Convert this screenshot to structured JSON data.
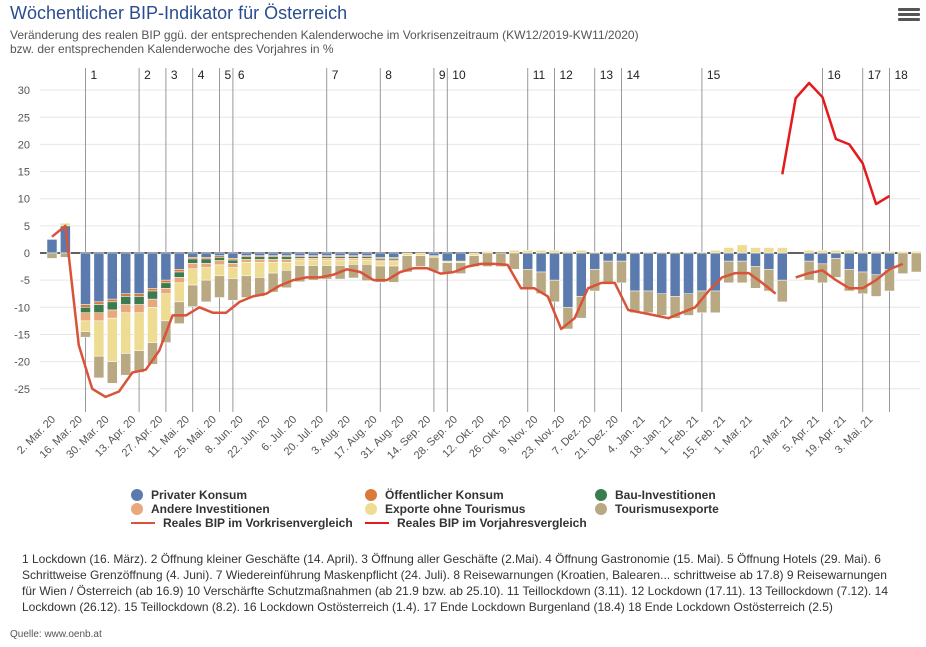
{
  "title": "Wöchentlicher BIP-Indikator für Österreich",
  "subtitle_line1": "Veränderung des realen BIP ggü. der entsprechenden Kalenderwoche im Vorkrisenzeitraum (KW12/2019-KW11/2020)",
  "subtitle_line2": "bzw. der entsprechenden Kalenderwoche des Vorjahres in %",
  "menu_icon": "hamburger-menu-icon",
  "legend": [
    {
      "label": "Privater Konsum",
      "color": "#5b7bae",
      "kind": "dot"
    },
    {
      "label": "Öffentlicher Konsum",
      "color": "#d97a3a",
      "kind": "dot"
    },
    {
      "label": "Bau-Investitionen",
      "color": "#3a7b4f",
      "kind": "dot"
    },
    {
      "label": "Andere Investitionen",
      "color": "#e8a87c",
      "kind": "dot"
    },
    {
      "label": "Exporte ohne Tourismus",
      "color": "#eedc92",
      "kind": "dot"
    },
    {
      "label": "Tourismusexporte",
      "color": "#b9a982",
      "kind": "dot"
    },
    {
      "label": "Reales BIP im Vorkrisenvergleich",
      "color": "#d9533a",
      "kind": "line"
    },
    {
      "label": "Reales BIP im Vorjahresvergleich",
      "color": "#e41a1c",
      "kind": "line"
    }
  ],
  "footnotes": "1 Lockdown (16. März).   2 Öffnung kleiner Geschäfte (14. April).   3 Öffnung aller Geschäfte (2.Mai).   4 Öffnung Gastronomie (15. Mai).   5 Öffnung Hotels (29. Mai).   6 Schrittweise Grenzöffnung (4. Juni).   7 Wiedereinführung Maskenpflicht (24. Juli).   8 Reisewarnungen (Kroatien, Balearen... schrittweise ab 17.8)   9 Reisewarnungen für Wien / Österreich (ab 16.9)   10 Verschärfte Schutzmaßnahmen (ab 21.9 bzw. ab 25.10).   11 Teillockdown (3.11).   12 Lockdown (17.11).   13 Teillockdown (7.12).   14 Lockdown (26.12).   15 Teillockdown (8.2).   16 Lockdown Ostösterreich (1.4).   17 Ende Lockdown Burgenland (18.4)   18 Ende Lockdown Ostösterreich (2.5)",
  "source": "Quelle: www.oenb.at",
  "chart_data": {
    "type": "bar",
    "stacked": true,
    "ylim": [
      -27,
      31
    ],
    "yticks": [
      30,
      25,
      20,
      15,
      10,
      5,
      0,
      -5,
      -10,
      -15,
      -20,
      -25
    ],
    "grid": true,
    "legend_position": "bottom",
    "x_tick_labels": [
      "2. Mar. 20",
      "16. Mar. 20",
      "30. Mar. 20",
      "13. Apr. 20",
      "27. Apr. 20",
      "11. Mai. 20",
      "25. Mai. 20",
      "8. Jun. 20",
      "22. Jun. 20",
      "6. Jul. 20",
      "20. Jul. 20",
      "3. Aug. 20",
      "17. Aug. 20",
      "31. Aug. 20",
      "14. Sep. 20",
      "28. Sep. 20",
      "12. Okt. 20",
      "26. Okt. 20",
      "9. Nov. 20",
      "23. Nov. 20",
      "7. Dez. 20",
      "21. Dez. 20",
      "4. Jan. 21",
      "18. Jan. 21",
      "1. Feb. 21",
      "15. Feb. 21",
      "1. Mar. 21",
      "22. Mar. 21",
      "5. Apr. 21",
      "19. Apr. 21",
      "3. Mai. 21"
    ],
    "x_tick_weeks": [
      0,
      2,
      4,
      6,
      8,
      10,
      12,
      14,
      16,
      18,
      20,
      22,
      24,
      26,
      28,
      30,
      32,
      34,
      36,
      38,
      40,
      42,
      44,
      46,
      48,
      50,
      52,
      55,
      57,
      59,
      61
    ],
    "event_lines": [
      {
        "label": "1",
        "week": 2.5
      },
      {
        "label": "2",
        "week": 6.5
      },
      {
        "label": "3",
        "week": 8.5
      },
      {
        "label": "4",
        "week": 10.5
      },
      {
        "label": "5",
        "week": 12.5
      },
      {
        "label": "6",
        "week": 13.5
      },
      {
        "label": "7",
        "week": 20.5
      },
      {
        "label": "8",
        "week": 24.5
      },
      {
        "label": "9",
        "week": 28.5
      },
      {
        "label": "10",
        "week": 29.5
      },
      {
        "label": "11",
        "week": 35.5
      },
      {
        "label": "12",
        "week": 37.5
      },
      {
        "label": "13",
        "week": 40.5
      },
      {
        "label": "14",
        "week": 42.5
      },
      {
        "label": "15",
        "week": 48.5
      },
      {
        "label": "16",
        "week": 57.5
      },
      {
        "label": "17",
        "week": 60.5
      },
      {
        "label": "18",
        "week": 62.5
      }
    ],
    "series_names": [
      "Privater Konsum",
      "Öffentlicher Konsum",
      "Bau-Investitionen",
      "Andere Investitionen",
      "Exporte ohne Tourismus",
      "Tourismusexporte"
    ],
    "series_colors": [
      "#5b7bae",
      "#d97a3a",
      "#3a7b4f",
      "#e8a87c",
      "#eedc92",
      "#b9a982"
    ],
    "weeks": [
      {
        "w": 0,
        "v": [
          2.5,
          0,
          0,
          0,
          0,
          -1.0
        ]
      },
      {
        "w": 1,
        "v": [
          5.0,
          0,
          0,
          0,
          0.5,
          -0.8
        ]
      },
      {
        "w": 2.5,
        "v": [
          -9.5,
          -0.5,
          -1.0,
          -1.5,
          -2.0,
          -1.0
        ]
      },
      {
        "w": 3.5,
        "v": [
          -9.0,
          -0.5,
          -1.5,
          -1.5,
          -6.5,
          -4.0
        ]
      },
      {
        "w": 4.5,
        "v": [
          -8.5,
          -0.5,
          -1.5,
          -1.5,
          -8.0,
          -4.0
        ]
      },
      {
        "w": 5.5,
        "v": [
          -7.5,
          -0.5,
          -1.5,
          -1.5,
          -7.5,
          -4.0
        ]
      },
      {
        "w": 6.5,
        "v": [
          -7.5,
          -0.5,
          -1.5,
          -1.5,
          -7.0,
          -4.0
        ]
      },
      {
        "w": 7.5,
        "v": [
          -6.5,
          -0.5,
          -1.5,
          -1.5,
          -6.5,
          -4.0
        ]
      },
      {
        "w": 8.5,
        "v": [
          -5.0,
          -0.5,
          -1.0,
          -1.0,
          -5.0,
          -4.0
        ]
      },
      {
        "w": 9.5,
        "v": [
          -3.0,
          -0.5,
          -1.0,
          -1.0,
          -3.5,
          -4.0
        ]
      },
      {
        "w": 10.5,
        "v": [
          -0.8,
          -0.3,
          -0.8,
          -1.0,
          -3.0,
          -4.0
        ]
      },
      {
        "w": 11.5,
        "v": [
          -0.8,
          -0.3,
          -0.8,
          -0.8,
          -2.3,
          -4.0
        ]
      },
      {
        "w": 12.5,
        "v": [
          -0.5,
          -0.3,
          -0.6,
          -0.8,
          -2.0,
          -4.0
        ]
      },
      {
        "w": 13.5,
        "v": [
          -1.0,
          -0.3,
          -0.6,
          -0.8,
          -2.0,
          -4.0
        ]
      },
      {
        "w": 14.5,
        "v": [
          -0.5,
          -0.2,
          -0.5,
          -0.5,
          -2.5,
          -4.0
        ]
      },
      {
        "w": 15.5,
        "v": [
          -0.5,
          -0.2,
          -0.5,
          -0.5,
          -2.8,
          -3.5
        ]
      },
      {
        "w": 16.5,
        "v": [
          -0.5,
          -0.2,
          -0.5,
          -0.5,
          -2.0,
          -3.5
        ]
      },
      {
        "w": 17.5,
        "v": [
          -0.5,
          -0.2,
          -0.5,
          -0.5,
          -1.5,
          -3.2
        ]
      },
      {
        "w": 18.5,
        "v": [
          -0.5,
          -0.2,
          -0.3,
          -0.3,
          -1.0,
          -3.0
        ]
      },
      {
        "w": 19.5,
        "v": [
          -0.5,
          -0.2,
          -0.3,
          -0.3,
          -1.0,
          -2.7
        ]
      },
      {
        "w": 20.5,
        "v": [
          -0.5,
          -0.2,
          -0.3,
          -0.3,
          -1.0,
          -2.5
        ]
      },
      {
        "w": 21.5,
        "v": [
          -0.5,
          -0.2,
          -0.3,
          -0.3,
          -1.0,
          -2.5
        ]
      },
      {
        "w": 22.5,
        "v": [
          -0.5,
          -0.2,
          -0.3,
          -0.3,
          -0.8,
          -2.5
        ]
      },
      {
        "w": 23.5,
        "v": [
          -0.5,
          -0.2,
          -0.3,
          -0.3,
          -0.8,
          -3.0
        ]
      },
      {
        "w": 24.5,
        "v": [
          -0.8,
          -0.2,
          -0.3,
          -0.3,
          -0.8,
          -3.0
        ]
      },
      {
        "w": 25.5,
        "v": [
          -0.8,
          -0.2,
          -0.3,
          -0.3,
          -0.8,
          -3.0
        ]
      },
      {
        "w": 26.5,
        "v": [
          0,
          0,
          0,
          0,
          -0.5,
          -3.0
        ]
      },
      {
        "w": 27.5,
        "v": [
          0,
          0,
          0,
          0,
          -0.5,
          -2.0
        ]
      },
      {
        "w": 28.5,
        "v": [
          -0.5,
          0,
          0,
          0,
          -0.3,
          -2.5
        ]
      },
      {
        "w": 29.5,
        "v": [
          -1.5,
          0,
          0,
          0,
          -0.3,
          -2.0
        ]
      },
      {
        "w": 30.5,
        "v": [
          -1.5,
          0,
          0,
          0,
          -0.3,
          -2.0
        ]
      },
      {
        "w": 31.5,
        "v": [
          0,
          0,
          0,
          0,
          -0.5,
          -2.0
        ]
      },
      {
        "w": 32.5,
        "v": [
          0,
          0,
          0,
          0,
          0.3,
          -2.5
        ]
      },
      {
        "w": 33.5,
        "v": [
          0,
          0,
          0,
          0,
          0,
          -2.5
        ]
      },
      {
        "w": 34.5,
        "v": [
          0,
          0,
          0,
          0,
          0.5,
          -3.0
        ]
      },
      {
        "w": 35.5,
        "v": [
          -3.0,
          0,
          0,
          0,
          0.5,
          -3.5
        ]
      },
      {
        "w": 36.5,
        "v": [
          -3.5,
          0,
          0,
          0,
          0.5,
          -4.0
        ]
      },
      {
        "w": 37.5,
        "v": [
          -5.0,
          0,
          0,
          0,
          0.5,
          -4.0
        ]
      },
      {
        "w": 38.5,
        "v": [
          -10.0,
          0,
          0,
          0,
          0.3,
          -4.0
        ]
      },
      {
        "w": 39.5,
        "v": [
          -8.0,
          0,
          0,
          0,
          0.5,
          -4.0
        ]
      },
      {
        "w": 40.5,
        "v": [
          -3.0,
          0,
          0,
          0,
          0.2,
          -4.0
        ]
      },
      {
        "w": 41.5,
        "v": [
          -1.5,
          0,
          0,
          0,
          0.2,
          -4.0
        ]
      },
      {
        "w": 42.5,
        "v": [
          -1.5,
          0,
          0,
          0,
          0.2,
          -4.0
        ]
      },
      {
        "w": 43.5,
        "v": [
          -7.0,
          0,
          0,
          0,
          0.2,
          -4.0
        ]
      },
      {
        "w": 44.5,
        "v": [
          -7.0,
          0,
          0,
          0,
          0.2,
          -4.0
        ]
      },
      {
        "w": 45.5,
        "v": [
          -7.5,
          0,
          0,
          0,
          0.2,
          -4.0
        ]
      },
      {
        "w": 46.5,
        "v": [
          -8.0,
          0,
          0,
          0,
          0.2,
          -4.0
        ]
      },
      {
        "w": 47.5,
        "v": [
          -7.5,
          0,
          0,
          0,
          0.2,
          -4.0
        ]
      },
      {
        "w": 48.5,
        "v": [
          -7.0,
          0,
          0,
          0,
          0.2,
          -4.0
        ]
      },
      {
        "w": 49.5,
        "v": [
          -7.0,
          0,
          0,
          0,
          0.5,
          -4.0
        ]
      },
      {
        "w": 50.5,
        "v": [
          -1.5,
          0,
          0,
          0,
          1.0,
          -4.0
        ]
      },
      {
        "w": 51.5,
        "v": [
          -1.5,
          0,
          0,
          0,
          1.5,
          -4.0
        ]
      },
      {
        "w": 52.5,
        "v": [
          -2.5,
          0,
          0,
          0,
          1.0,
          -4.0
        ]
      },
      {
        "w": 53.5,
        "v": [
          -3.0,
          0,
          0,
          0,
          1.0,
          -4.0
        ]
      },
      {
        "w": 54.5,
        "v": [
          -5.0,
          0,
          0,
          0,
          1.0,
          -4.0
        ]
      },
      {
        "w": 56.5,
        "v": [
          -1.5,
          0,
          0,
          0,
          0.5,
          -3.5
        ]
      },
      {
        "w": 57.5,
        "v": [
          -2.0,
          0,
          0,
          0,
          0.5,
          -3.5
        ]
      },
      {
        "w": 58.5,
        "v": [
          -1.0,
          0,
          0,
          0,
          0.5,
          -3.5
        ]
      },
      {
        "w": 59.5,
        "v": [
          -3.0,
          0,
          0,
          0,
          0.5,
          -4.0
        ]
      },
      {
        "w": 60.5,
        "v": [
          -3.5,
          0,
          0,
          0,
          0.3,
          -4.0
        ]
      },
      {
        "w": 61.5,
        "v": [
          -4.0,
          0,
          0,
          0,
          0.3,
          -4.0
        ]
      },
      {
        "w": 62.5,
        "v": [
          -3.0,
          0,
          0,
          0,
          0.3,
          -4.0
        ]
      },
      {
        "w": 63.5,
        "v": [
          0,
          0,
          0,
          0,
          0.3,
          -3.8
        ]
      },
      {
        "w": 64.5,
        "v": [
          0,
          0,
          0,
          0,
          0.3,
          -3.5
        ]
      }
    ],
    "line_vorkrise": {
      "name": "Reales BIP im Vorkrisenvergleich",
      "points": [
        [
          0,
          3.0
        ],
        [
          1,
          5.0
        ],
        [
          2,
          -17.0
        ],
        [
          3,
          -25.0
        ],
        [
          4,
          -26.5
        ],
        [
          5,
          -25.5
        ],
        [
          6,
          -22.0
        ],
        [
          7,
          -21.5
        ],
        [
          8,
          -18.0
        ],
        [
          9,
          -11.5
        ],
        [
          10,
          -11.5
        ],
        [
          11,
          -10.0
        ],
        [
          12,
          -11.0
        ],
        [
          13,
          -11.0
        ],
        [
          14,
          -9.0
        ],
        [
          15,
          -8.0
        ],
        [
          16,
          -7.5
        ],
        [
          17,
          -6.0
        ],
        [
          18,
          -5.0
        ],
        [
          19,
          -4.5
        ],
        [
          20,
          -4.5
        ],
        [
          21,
          -4.0
        ],
        [
          22,
          -3.0
        ],
        [
          23,
          -3.5
        ],
        [
          24,
          -5.0
        ],
        [
          25,
          -5.0
        ],
        [
          26,
          -3.5
        ],
        [
          27,
          -2.8
        ],
        [
          28,
          -2.8
        ],
        [
          29,
          -3.8
        ],
        [
          30,
          -3.5
        ],
        [
          31,
          -2.5
        ],
        [
          32,
          -2.0
        ],
        [
          33,
          -2.0
        ],
        [
          34,
          -2.2
        ],
        [
          35,
          -6.5
        ],
        [
          36,
          -6.5
        ],
        [
          37,
          -8.0
        ],
        [
          38,
          -14.0
        ],
        [
          39,
          -12.0
        ],
        [
          40,
          -6.5
        ],
        [
          41,
          -5.5
        ],
        [
          42,
          -5.5
        ],
        [
          43,
          -10.5
        ],
        [
          44,
          -11.0
        ],
        [
          45,
          -11.5
        ],
        [
          46,
          -12.0
        ],
        [
          47,
          -11.0
        ],
        [
          48,
          -10.0
        ],
        [
          49,
          -7.0
        ],
        [
          50,
          -4.5
        ],
        [
          51,
          -3.7
        ],
        [
          52,
          -3.7
        ],
        [
          53,
          -5.5
        ],
        [
          54,
          -7.5
        ]
      ],
      "color": "#d9533a"
    },
    "line_vorjahr": {
      "name": "Reales BIP im Vorjahresvergleich",
      "points": [
        [
          54.5,
          14.5
        ],
        [
          55.5,
          28.5
        ],
        [
          56.5,
          31.3
        ],
        [
          57.5,
          28.7
        ],
        [
          58.5,
          21.0
        ],
        [
          59.5,
          20.0
        ],
        [
          60.5,
          16.5
        ],
        [
          61.5,
          9.0
        ],
        [
          62.5,
          10.5
        ]
      ],
      "points2": [
        [
          55.5,
          -4.5
        ],
        [
          56.5,
          -3.7
        ],
        [
          57.5,
          -3.2
        ],
        [
          58.5,
          -5.0
        ],
        [
          59.5,
          -6.5
        ],
        [
          60.5,
          -6.5
        ],
        [
          61.5,
          -5.0
        ],
        [
          62.5,
          -3.0
        ],
        [
          63.5,
          -2.0
        ]
      ],
      "color": "#e41a1c"
    }
  }
}
